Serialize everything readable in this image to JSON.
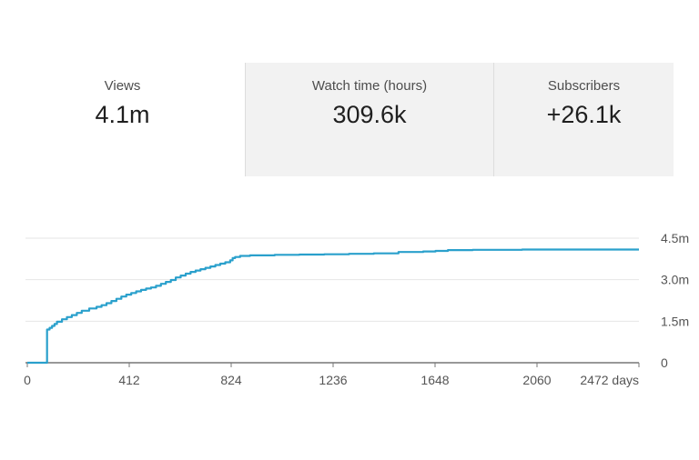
{
  "metrics": [
    {
      "label": "Views",
      "value": "4.1m"
    },
    {
      "label": "Watch time (hours)",
      "value": "309.6k"
    },
    {
      "label": "Subscribers",
      "value": "+26.1k"
    }
  ],
  "colors": {
    "line": "#2aa0cc",
    "grid": "#e6e6e6",
    "axis": "#777777",
    "metric_bg": "#f2f2f2"
  },
  "chart_data": {
    "type": "line",
    "title": "",
    "xlabel": "",
    "ylabel": "",
    "x_unit": "days",
    "xlim": [
      0,
      2472
    ],
    "ylim": [
      0,
      4500000
    ],
    "x_ticks": [
      0,
      412,
      824,
      1236,
      1648,
      2060,
      2472
    ],
    "x_tick_labels": [
      "0",
      "412",
      "824",
      "1236",
      "1648",
      "2060",
      "2472 days"
    ],
    "y_ticks": [
      0,
      1500000,
      3000000,
      4500000
    ],
    "y_tick_labels": [
      "0",
      "1.5m",
      "3.0m",
      "4.5m"
    ],
    "y_axis_position": "right",
    "grid": true,
    "series": [
      {
        "x": [
          0,
          80,
          80,
          90,
          100,
          110,
          120,
          140,
          160,
          180,
          200,
          220,
          250,
          280,
          300,
          320,
          340,
          360,
          380,
          400,
          420,
          440,
          460,
          480,
          500,
          520,
          540,
          560,
          580,
          600,
          620,
          640,
          660,
          680,
          700,
          720,
          740,
          760,
          780,
          800,
          820,
          830,
          840,
          860,
          900,
          1000,
          1100,
          1200,
          1300,
          1400,
          1500,
          1600,
          1650,
          1700,
          1800,
          2000,
          2200,
          2472
        ],
        "y": [
          0,
          0,
          1200000,
          1260000,
          1330000,
          1400000,
          1480000,
          1570000,
          1650000,
          1720000,
          1800000,
          1880000,
          1960000,
          2020000,
          2080000,
          2150000,
          2230000,
          2310000,
          2390000,
          2460000,
          2520000,
          2580000,
          2630000,
          2680000,
          2720000,
          2780000,
          2850000,
          2920000,
          2990000,
          3080000,
          3150000,
          3220000,
          3280000,
          3330000,
          3380000,
          3430000,
          3480000,
          3530000,
          3580000,
          3630000,
          3700000,
          3780000,
          3820000,
          3860000,
          3880000,
          3900000,
          3910000,
          3920000,
          3935000,
          3950000,
          4000000,
          4020000,
          4040000,
          4070000,
          4080000,
          4090000,
          4090000,
          4090000
        ]
      }
    ]
  }
}
